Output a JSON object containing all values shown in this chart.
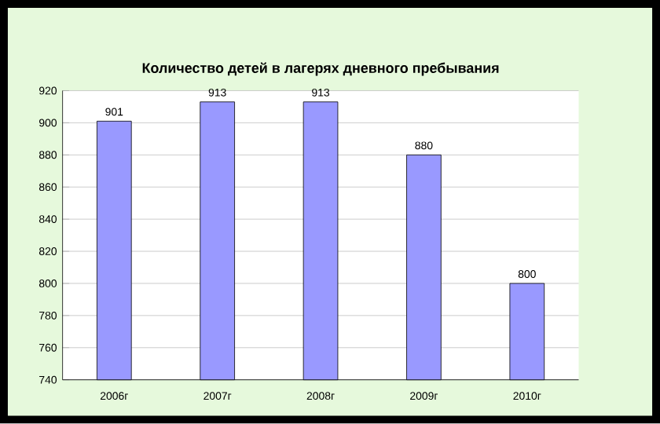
{
  "chart_data": {
    "type": "bar",
    "title": "Количество детей в лагерях дневного пребывания",
    "categories": [
      "2006г",
      "2007г",
      "2008г",
      "2009г",
      "2010г"
    ],
    "values": [
      901,
      913,
      913,
      880,
      800
    ],
    "color": "#9999ff",
    "ylim": [
      740,
      920
    ],
    "yticks": [
      740,
      760,
      780,
      800,
      820,
      840,
      860,
      880,
      900,
      920
    ],
    "grid": "y",
    "data_labels": true
  }
}
